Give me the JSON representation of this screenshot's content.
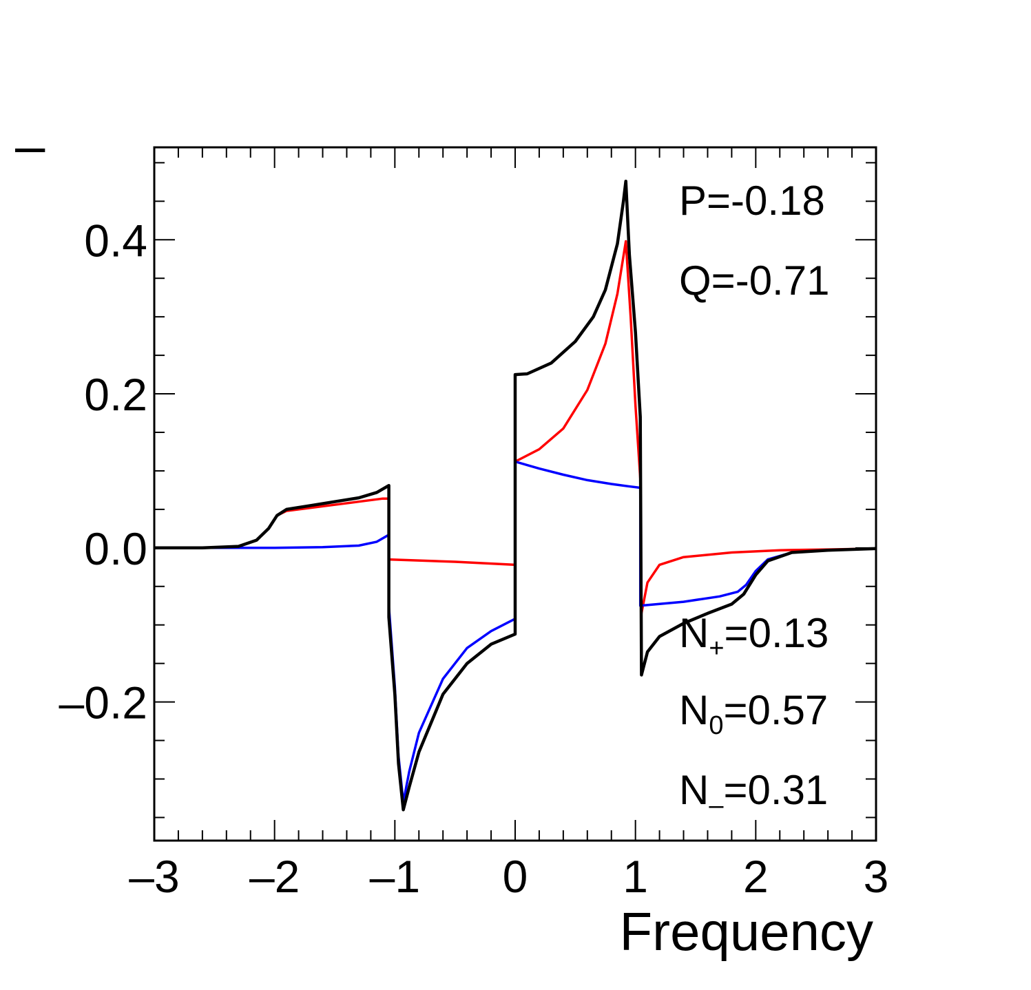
{
  "chart_data": {
    "type": "line",
    "title": "",
    "xlabel": "Frequency",
    "ylabel": "",
    "ylabel_visible_fragment": "–",
    "xlim": [
      -3,
      3
    ],
    "ylim": [
      -0.38,
      0.52
    ],
    "xticks": [
      -3,
      -2,
      -1,
      0,
      1,
      2,
      3
    ],
    "xtick_labels": [
      "–3",
      "–2",
      "–1",
      "0",
      "1",
      "2",
      "3"
    ],
    "yticks": [
      -0.2,
      0.0,
      0.2,
      0.4
    ],
    "ytick_labels": [
      "–0.2",
      "0.0",
      "0.2",
      "0.4"
    ],
    "grid": false,
    "annotations": {
      "P": "P=-0.18",
      "Q": "Q=-0.71",
      "Nplus_main": "N",
      "Nplus_sub": "+",
      "Nplus_value": "=0.13",
      "N0_main": "N",
      "N0_sub": "0",
      "N0_value": "=0.57",
      "Nminus_main": "N",
      "Nminus_sub": "–",
      "Nminus_value": "=0.31"
    },
    "series": [
      {
        "name": "red",
        "color": "#ff0000",
        "points": [
          [
            -3.0,
            0.0
          ],
          [
            -2.6,
            0.0
          ],
          [
            -2.3,
            0.002
          ],
          [
            -2.15,
            0.01
          ],
          [
            -2.05,
            0.025
          ],
          [
            -1.98,
            0.042
          ],
          [
            -1.9,
            0.048
          ],
          [
            -1.7,
            0.052
          ],
          [
            -1.5,
            0.056
          ],
          [
            -1.3,
            0.06
          ],
          [
            -1.1,
            0.064
          ],
          [
            -1.05,
            0.064
          ],
          [
            -1.05,
            -0.015
          ],
          [
            -0.5,
            -0.018
          ],
          [
            0.0,
            -0.022
          ],
          [
            0.0,
            0.112
          ],
          [
            0.2,
            0.128
          ],
          [
            0.4,
            0.155
          ],
          [
            0.6,
            0.205
          ],
          [
            0.75,
            0.265
          ],
          [
            0.85,
            0.33
          ],
          [
            0.92,
            0.398
          ],
          [
            0.96,
            0.3
          ],
          [
            1.0,
            0.185
          ],
          [
            1.04,
            0.09
          ],
          [
            1.05,
            -0.085
          ],
          [
            1.1,
            -0.045
          ],
          [
            1.2,
            -0.022
          ],
          [
            1.4,
            -0.012
          ],
          [
            1.8,
            -0.006
          ],
          [
            2.2,
            -0.003
          ],
          [
            2.6,
            -0.002
          ],
          [
            3.0,
            -0.001
          ]
        ]
      },
      {
        "name": "blue",
        "color": "#0000ff",
        "points": [
          [
            -3.0,
            0.0
          ],
          [
            -2.0,
            0.0
          ],
          [
            -1.6,
            0.001
          ],
          [
            -1.3,
            0.003
          ],
          [
            -1.15,
            0.008
          ],
          [
            -1.05,
            0.017
          ],
          [
            -1.05,
            -0.075
          ],
          [
            -1.0,
            -0.18
          ],
          [
            -0.97,
            -0.27
          ],
          [
            -0.93,
            -0.33
          ],
          [
            -0.88,
            -0.29
          ],
          [
            -0.8,
            -0.24
          ],
          [
            -0.6,
            -0.17
          ],
          [
            -0.4,
            -0.13
          ],
          [
            -0.2,
            -0.108
          ],
          [
            0.0,
            -0.092
          ],
          [
            0.0,
            0.112
          ],
          [
            0.2,
            0.103
          ],
          [
            0.4,
            0.095
          ],
          [
            0.6,
            0.088
          ],
          [
            0.8,
            0.083
          ],
          [
            0.94,
            0.08
          ],
          [
            1.04,
            0.078
          ],
          [
            1.04,
            -0.075
          ],
          [
            1.4,
            -0.07
          ],
          [
            1.7,
            -0.063
          ],
          [
            1.85,
            -0.057
          ],
          [
            1.92,
            -0.048
          ],
          [
            2.0,
            -0.03
          ],
          [
            2.1,
            -0.015
          ],
          [
            2.3,
            -0.006
          ],
          [
            2.6,
            -0.003
          ],
          [
            3.0,
            -0.001
          ]
        ]
      },
      {
        "name": "black",
        "color": "#000000",
        "points": [
          [
            -3.0,
            0.0
          ],
          [
            -2.6,
            0.0
          ],
          [
            -2.3,
            0.002
          ],
          [
            -2.15,
            0.01
          ],
          [
            -2.05,
            0.025
          ],
          [
            -1.98,
            0.042
          ],
          [
            -1.9,
            0.05
          ],
          [
            -1.7,
            0.055
          ],
          [
            -1.5,
            0.06
          ],
          [
            -1.3,
            0.065
          ],
          [
            -1.15,
            0.072
          ],
          [
            -1.05,
            0.081
          ],
          [
            -1.05,
            -0.09
          ],
          [
            -1.0,
            -0.19
          ],
          [
            -0.97,
            -0.28
          ],
          [
            -0.93,
            -0.34
          ],
          [
            -0.88,
            -0.31
          ],
          [
            -0.8,
            -0.265
          ],
          [
            -0.6,
            -0.19
          ],
          [
            -0.4,
            -0.15
          ],
          [
            -0.2,
            -0.125
          ],
          [
            0.0,
            -0.112
          ],
          [
            0.0,
            0.225
          ],
          [
            0.1,
            0.226
          ],
          [
            0.3,
            0.24
          ],
          [
            0.5,
            0.268
          ],
          [
            0.65,
            0.3
          ],
          [
            0.75,
            0.335
          ],
          [
            0.85,
            0.395
          ],
          [
            0.9,
            0.45
          ],
          [
            0.92,
            0.476
          ],
          [
            0.95,
            0.38
          ],
          [
            1.0,
            0.28
          ],
          [
            1.04,
            0.17
          ],
          [
            1.05,
            -0.165
          ],
          [
            1.1,
            -0.135
          ],
          [
            1.2,
            -0.115
          ],
          [
            1.4,
            -0.098
          ],
          [
            1.6,
            -0.085
          ],
          [
            1.8,
            -0.073
          ],
          [
            1.9,
            -0.06
          ],
          [
            2.0,
            -0.035
          ],
          [
            2.1,
            -0.017
          ],
          [
            2.3,
            -0.006
          ],
          [
            2.6,
            -0.003
          ],
          [
            3.0,
            -0.001
          ]
        ]
      }
    ]
  }
}
